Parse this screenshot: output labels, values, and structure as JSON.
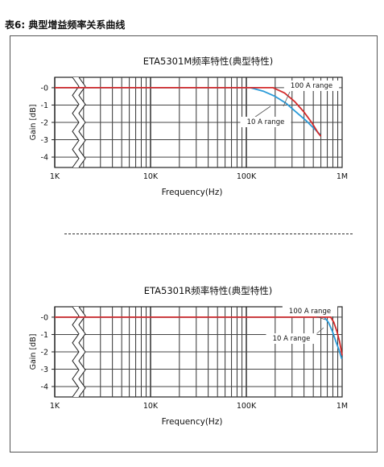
{
  "page": {
    "title": "表6: 典型增益频率关系曲线"
  },
  "chart_data": [
    {
      "type": "line",
      "title": "ETA5301M频率特性(典型特性)",
      "xlabel": "Frequency(Hz)",
      "ylabel": "Gain [dB]",
      "xscale": "log",
      "xlim": [
        1000,
        1000000
      ],
      "ylim": [
        -4.6,
        0.6
      ],
      "xticks": [
        {
          "value": 1000,
          "label": "1K"
        },
        {
          "value": 10000,
          "label": "10K"
        },
        {
          "value": 100000,
          "label": "100K"
        },
        {
          "value": 1000000,
          "label": "1M"
        }
      ],
      "yticks": [
        {
          "value": 0,
          "label": "-0"
        },
        {
          "value": -1,
          "label": "-1"
        },
        {
          "value": -2,
          "label": "-2"
        },
        {
          "value": -3,
          "label": "-3"
        },
        {
          "value": -4,
          "label": "-4"
        }
      ],
      "grid": true,
      "axis_break": true,
      "series": [
        {
          "name": "100 A range",
          "color": "#d42a2a",
          "x": [
            1000,
            190000,
            250000,
            320000,
            400000,
            480000,
            560000,
            600000
          ],
          "y": [
            0,
            0,
            -0.3,
            -0.8,
            -1.4,
            -2.0,
            -2.6,
            -2.8
          ]
        },
        {
          "name": "10 A range",
          "color": "#2a9ad8",
          "x": [
            1000,
            110000,
            150000,
            200000,
            260000,
            330000,
            420000,
            520000,
            590000
          ],
          "y": [
            0,
            0,
            -0.2,
            -0.5,
            -0.9,
            -1.4,
            -1.9,
            -2.4,
            -2.7
          ]
        }
      ],
      "annotations": [
        {
          "text": "100 A range",
          "series": 0
        },
        {
          "text": "10 A range",
          "series": 1
        }
      ]
    },
    {
      "type": "line",
      "title": "ETA5301R频率特性(典型特性)",
      "xlabel": "Frequency(Hz)",
      "ylabel": "Gain [dB]",
      "xscale": "log",
      "xlim": [
        1000,
        1000000
      ],
      "ylim": [
        -4.6,
        0.6
      ],
      "xticks": [
        {
          "value": 1000,
          "label": "1K"
        },
        {
          "value": 10000,
          "label": "10K"
        },
        {
          "value": 100000,
          "label": "100K"
        },
        {
          "value": 1000000,
          "label": "1M"
        }
      ],
      "yticks": [
        {
          "value": 0,
          "label": "-0"
        },
        {
          "value": -1,
          "label": "-1"
        },
        {
          "value": -2,
          "label": "-2"
        },
        {
          "value": -3,
          "label": "-3"
        },
        {
          "value": -4,
          "label": "-4"
        }
      ],
      "grid": true,
      "axis_break": true,
      "series": [
        {
          "name": "100 A range",
          "color": "#d42a2a",
          "x": [
            1000,
            760000,
            820000,
            880000,
            940000,
            1000000
          ],
          "y": [
            0,
            0,
            -0.3,
            -0.8,
            -1.4,
            -2.2
          ]
        },
        {
          "name": "10 A range",
          "color": "#2a9ad8",
          "x": [
            1000,
            650000,
            720000,
            790000,
            860000,
            930000,
            990000
          ],
          "y": [
            0,
            0,
            -0.3,
            -0.8,
            -1.4,
            -1.9,
            -2.4
          ]
        }
      ],
      "annotations": [
        {
          "text": "100 A range",
          "series": 0
        },
        {
          "text": "10 A range",
          "series": 1
        }
      ]
    }
  ]
}
